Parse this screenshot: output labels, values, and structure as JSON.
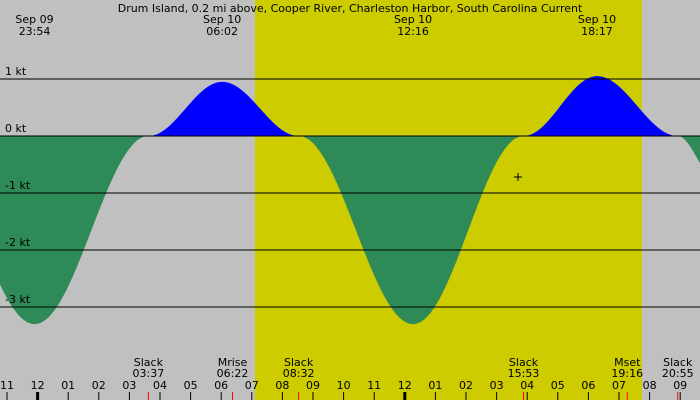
{
  "chart_data": {
    "type": "area",
    "title": "Drum Island, 0.2 mi above, Cooper River, Charleston Harbor, South Carolina Current",
    "y_unit": "kt",
    "ylim": [
      -3.5,
      1.4
    ],
    "y_ticks": [
      {
        "value": 1,
        "label": "1 kt"
      },
      {
        "value": 0,
        "label": "0 kt"
      },
      {
        "value": -1,
        "label": "-1 kt"
      },
      {
        "value": -2,
        "label": "-2 kt"
      },
      {
        "value": -3,
        "label": "-3 kt"
      }
    ],
    "x_range": [
      "Sep 09 10:40",
      "Sep 10 22:30"
    ],
    "x_unit": "hours since Sep 09 00:00",
    "x_ticks": [
      {
        "value": 23,
        "label": "11"
      },
      {
        "value": 24,
        "label": "12"
      },
      {
        "value": 25,
        "label": "01"
      },
      {
        "value": 26,
        "label": "02"
      },
      {
        "value": 27,
        "label": "03"
      },
      {
        "value": 28,
        "label": "04"
      },
      {
        "value": 29,
        "label": "05"
      },
      {
        "value": 30,
        "label": "06"
      },
      {
        "value": 31,
        "label": "07"
      },
      {
        "value": 32,
        "label": "08"
      },
      {
        "value": 33,
        "label": "09"
      },
      {
        "value": 34,
        "label": "10"
      },
      {
        "value": 35,
        "label": "11"
      },
      {
        "value": 36,
        "label": "12"
      },
      {
        "value": 37,
        "label": "01"
      },
      {
        "value": 38,
        "label": "02"
      },
      {
        "value": 39,
        "label": "03"
      },
      {
        "value": 40,
        "label": "04"
      },
      {
        "value": 41,
        "label": "05"
      },
      {
        "value": 42,
        "label": "06"
      },
      {
        "value": 43,
        "label": "07"
      },
      {
        "value": 44,
        "label": "08"
      },
      {
        "value": 45,
        "label": "09"
      }
    ],
    "top_labels": [
      {
        "date": "Sep 09",
        "time": "23:54",
        "x": 23.9
      },
      {
        "date": "Sep 10",
        "time": "06:02",
        "x": 30.03
      },
      {
        "date": "Sep 10",
        "time": "12:16",
        "x": 36.27
      },
      {
        "date": "Sep 10",
        "time": "18:17",
        "x": 42.28
      }
    ],
    "events": [
      {
        "name": "Slack",
        "time": "03:37",
        "x": 27.62,
        "color": "#ff0000"
      },
      {
        "name": "Mrise",
        "time": "06:22",
        "x": 30.37,
        "color": "#ff0000"
      },
      {
        "name": "Slack",
        "time": "08:32",
        "x": 32.53,
        "color": "#ff0000"
      },
      {
        "name": "Slack",
        "time": "15:53",
        "x": 39.88,
        "color": "#ff0000"
      },
      {
        "name": "Mset",
        "time": "19:16",
        "x": 43.27,
        "color": "#ff0000"
      },
      {
        "name": "Slack",
        "time": "20:55",
        "x": 44.92,
        "color": "#ff0000"
      }
    ],
    "extremes": [
      {
        "x": 23.9,
        "y": -3.3
      },
      {
        "x": 27.62,
        "y": 0
      },
      {
        "x": 30.03,
        "y": 0.95
      },
      {
        "x": 32.53,
        "y": 0
      },
      {
        "x": 36.27,
        "y": -3.3
      },
      {
        "x": 39.88,
        "y": 0
      },
      {
        "x": 42.28,
        "y": 1.05
      },
      {
        "x": 44.92,
        "y": 0
      }
    ],
    "after_last": {
      "x": 46.1,
      "y": -0.7
    },
    "daylight": [
      31.1,
      43.75
    ],
    "colors": {
      "night": "#c0c0c0",
      "day": "#cccc00",
      "flood": "#0000ff",
      "ebb": "#2e8b57",
      "grid": "#000000",
      "event_tick": "#ff0000"
    },
    "marker": {
      "x": 39.7,
      "y": -0.72
    }
  }
}
